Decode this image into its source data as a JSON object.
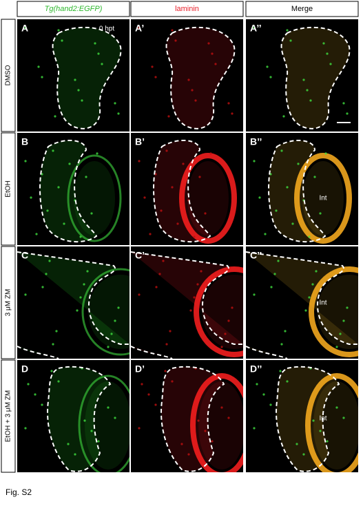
{
  "columns": [
    "Tg(hand2:EGFP)",
    "laminin",
    "Merge"
  ],
  "rows": [
    {
      "label": "DMSO",
      "panels": [
        {
          "label": "A",
          "note": "0 hpt"
        },
        {
          "label": "A’"
        },
        {
          "label": "A’’"
        }
      ]
    },
    {
      "label": "EtOH",
      "panels": [
        {
          "label": "B"
        },
        {
          "label": "B’"
        },
        {
          "label": "B’’",
          "note": "Int"
        }
      ]
    },
    {
      "label": "3 μM ZM",
      "panels": [
        {
          "label": "C"
        },
        {
          "label": "C’"
        },
        {
          "label": "C’’",
          "note": "Int"
        }
      ]
    },
    {
      "label": "EtOH + 3 μM ZM",
      "panels": [
        {
          "label": "D"
        },
        {
          "label": "D’"
        },
        {
          "label": "D’’",
          "note": "Int"
        }
      ]
    }
  ],
  "caption": "Fig. S2"
}
